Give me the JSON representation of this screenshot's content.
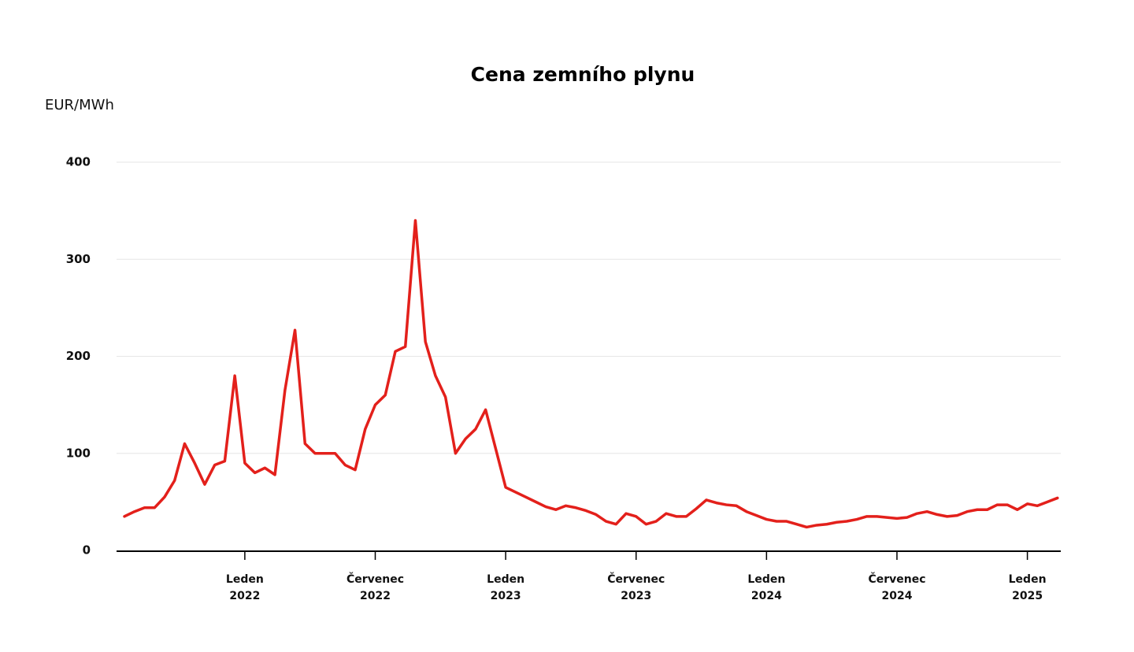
{
  "chart_data": {
    "type": "line",
    "title": "Cena zemního plynu",
    "y_label": "EUR/MWh",
    "categories": [
      null,
      null,
      null,
      null,
      null,
      null,
      null,
      null,
      null,
      null,
      null,
      null,
      "Leden 2022",
      null,
      null,
      null,
      null,
      null,
      null,
      null,
      null,
      null,
      null,
      null,
      null,
      "Červenec 2022",
      null,
      null,
      null,
      null,
      null,
      null,
      null,
      null,
      null,
      null,
      null,
      null,
      "Leden 2023",
      null,
      null,
      null,
      null,
      null,
      null,
      null,
      null,
      null,
      null,
      null,
      null,
      "Červenec 2023",
      null,
      null,
      null,
      null,
      null,
      null,
      null,
      null,
      null,
      null,
      null,
      null,
      "Leden 2024",
      null,
      null,
      null,
      null,
      null,
      null,
      null,
      null,
      null,
      null,
      null,
      null,
      "Červenec 2024",
      null,
      null,
      null,
      null,
      null,
      null,
      null,
      null,
      null,
      null,
      null,
      null,
      "Leden 2025",
      null,
      null,
      null
    ],
    "series": [
      {
        "name": "Cena",
        "color": "#e3201b",
        "values": [
          35,
          40,
          44,
          44,
          55,
          72,
          110,
          90,
          68,
          88,
          92,
          180,
          90,
          80,
          85,
          78,
          165,
          227,
          110,
          100,
          100,
          100,
          88,
          83,
          125,
          150,
          160,
          205,
          210,
          340,
          215,
          180,
          158,
          100,
          115,
          125,
          145,
          105,
          65,
          60,
          55,
          50,
          45,
          42,
          46,
          44,
          41,
          37,
          30,
          27,
          38,
          35,
          27,
          30,
          38,
          35,
          35,
          43,
          52,
          49,
          47,
          46,
          40,
          36,
          32,
          30,
          30,
          27,
          24,
          26,
          27,
          29,
          30,
          32,
          35,
          35,
          34,
          33,
          34,
          38,
          40,
          37,
          35,
          36,
          40,
          42,
          42,
          47,
          47,
          42,
          48,
          46,
          50,
          54
        ]
      }
    ],
    "ylim": [
      0,
      400
    ],
    "yticks": [
      0,
      100,
      200,
      300,
      400
    ],
    "grid": true
  }
}
